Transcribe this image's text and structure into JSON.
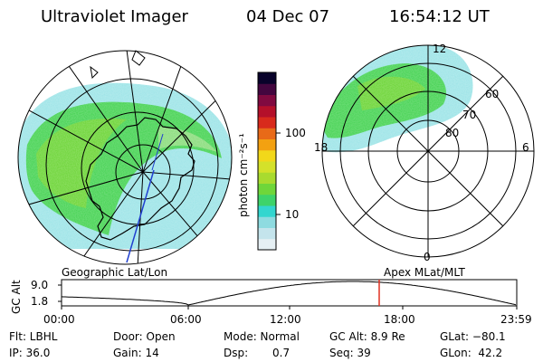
{
  "header": {
    "instrument": "Ultraviolet Imager",
    "date": "04 Dec 07",
    "time": "16:54:12 UT"
  },
  "colorbar": {
    "unit_label": "photon cm⁻²s⁻¹",
    "ticks": [
      "100",
      "10"
    ],
    "colors": [
      "#e6f0f4",
      "#c4e4ec",
      "#8edbe0",
      "#33d6cf",
      "#3ed36a",
      "#6fd63a",
      "#a9db2f",
      "#d4e12a",
      "#f2d81a",
      "#f3a111",
      "#e86a18",
      "#d82a1c",
      "#b4102a",
      "#800a40",
      "#43063f",
      "#08022a"
    ]
  },
  "left_map": {
    "caption": "Geographic Lat/Lon"
  },
  "right_map": {
    "caption": "Apex MLat/MLT",
    "mlt_labels": {
      "top": "12",
      "left": "18",
      "right": "6",
      "bottom": "0"
    },
    "mlat_labels": [
      "60",
      "70",
      "80"
    ]
  },
  "timeline": {
    "ylabel": "GC Alt",
    "ytick_top": "9.0",
    "ytick_bottom": "1.8",
    "xticks": [
      "00:00",
      "06:00",
      "12:00",
      "18:00",
      "23:59"
    ],
    "current_marker_color": "#e03020"
  },
  "info": {
    "filter": "Flt: LBHL",
    "ip": "IP: 36.0",
    "door": "Door: Open",
    "gain": "Gain: 14",
    "mode": "Mode: Normal",
    "dsp_label": "Dsp:",
    "dsp_value": "0.7",
    "gc_alt": "GC Alt: 8.9 Re",
    "seq": "Seq: 39",
    "glat": "GLat: −80.1",
    "glon": "GLon:  42.2"
  }
}
